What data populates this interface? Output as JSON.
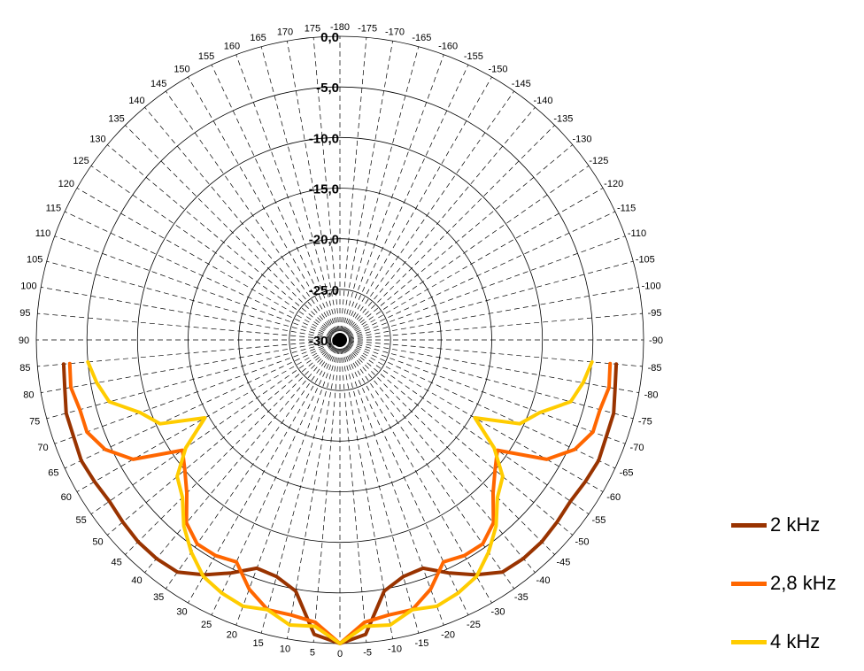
{
  "chart_data": {
    "type": "polar-line",
    "title": "",
    "radial_axis": {
      "min": -30,
      "max": 0,
      "ticks": [
        0,
        -5,
        -10,
        -15,
        -20,
        -25,
        -30
      ],
      "tick_labels": [
        "0,0",
        "-5,0",
        "-10,0",
        "-15,0",
        "-20,0",
        "-25,0",
        "-30,0"
      ]
    },
    "angular_axis": {
      "step": 5,
      "zero_at": "bottom",
      "positive_direction": "clockwise-from-bottom (to the left)",
      "tick_labels": [
        "-180",
        "-175",
        "-170",
        "-165",
        "-160",
        "-155",
        "-150",
        "-145",
        "-140",
        "-135",
        "-130",
        "-125",
        "-120",
        "-115",
        "-110",
        "-105",
        "-100",
        "-95",
        "-90",
        "-85",
        "-80",
        "-75",
        "-70",
        "-65",
        "-60",
        "-55",
        "-50",
        "-45",
        "-40",
        "-35",
        "-30",
        "-25",
        "-20",
        "-15",
        "-10",
        "-5",
        "0",
        "5",
        "10",
        "15",
        "20",
        "25",
        "30",
        "35",
        "40",
        "45",
        "50",
        "55",
        "60",
        "65",
        "70",
        "75",
        "80",
        "85",
        "90",
        "95",
        "100",
        "105",
        "110",
        "115",
        "120",
        "125",
        "130",
        "135",
        "140",
        "145",
        "150",
        "155",
        "160",
        "165",
        "170",
        "175"
      ]
    },
    "grid": true,
    "legend": {
      "position": "right-bottom",
      "entries": [
        "2 kHz",
        "2,8 kHz",
        "4 kHz"
      ]
    },
    "angles": [
      -85,
      -80,
      -75,
      -70,
      -65,
      -60,
      -55,
      -50,
      -45,
      -40,
      -35,
      -30,
      -25,
      -20,
      -15,
      -10,
      -5,
      0,
      5,
      10,
      15,
      20,
      25,
      30,
      35,
      40,
      45,
      50,
      55,
      60,
      65,
      70,
      75,
      80,
      85
    ],
    "series": [
      {
        "name": "2 kHz",
        "color": "#993300",
        "values": [
          -2.6,
          -2.4,
          -2.0,
          -2.0,
          -1.8,
          -2.0,
          -2.2,
          -2.0,
          -1.8,
          -1.8,
          -2.0,
          -3.2,
          -4.6,
          -6.0,
          -5.8,
          -4.8,
          -0.8,
          0,
          -0.8,
          -4.8,
          -5.8,
          -6.0,
          -4.6,
          -3.2,
          -2.0,
          -1.8,
          -1.8,
          -2.0,
          -2.2,
          -2.0,
          -1.8,
          -2.0,
          -2.0,
          -2.4,
          -2.6
        ]
      },
      {
        "name": "2,8 kHz",
        "color": "#ff6600",
        "values": [
          -3.2,
          -3.0,
          -3.4,
          -3.4,
          -4.4,
          -6.4,
          -11.0,
          -10.0,
          -8.6,
          -6.4,
          -5.4,
          -5.4,
          -5.8,
          -3.8,
          -2.4,
          -2.4,
          -2.0,
          0,
          -2.0,
          -2.4,
          -2.4,
          -3.8,
          -5.8,
          -5.4,
          -5.4,
          -6.4,
          -8.6,
          -10.0,
          -11.0,
          -6.4,
          -4.4,
          -3.4,
          -3.4,
          -3.0,
          -3.2
        ]
      },
      {
        "name": "4 kHz",
        "color": "#ffcc00",
        "values": [
          -5.0,
          -5.6,
          -6.4,
          -9.0,
          -10.4,
          -14.6,
          -11.4,
          -9.0,
          -8.0,
          -6.0,
          -4.4,
          -3.0,
          -2.4,
          -2.0,
          -2.4,
          -1.4,
          -1.6,
          0,
          -1.6,
          -1.4,
          -2.4,
          -2.0,
          -2.4,
          -3.0,
          -4.4,
          -6.0,
          -8.0,
          -9.0,
          -11.4,
          -14.6,
          -10.4,
          -9.0,
          -6.4,
          -5.6,
          -5.0
        ]
      }
    ]
  }
}
